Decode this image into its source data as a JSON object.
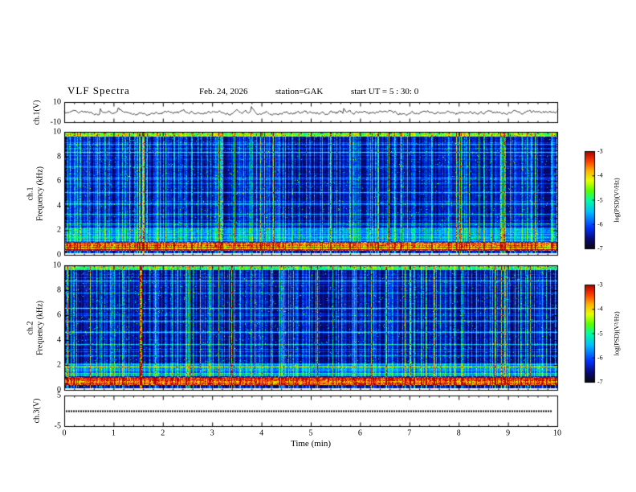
{
  "header": {
    "title": "VLF  Spectra",
    "date": "Feb. 24, 2026",
    "station": "station=GAK",
    "start_ut": "start UT =  5 : 30: 0"
  },
  "axes": {
    "time": {
      "label": "Time (min)",
      "min": 0,
      "max": 10,
      "ticks": [
        0,
        1,
        2,
        3,
        4,
        5,
        6,
        7,
        8,
        9,
        10
      ]
    },
    "ch1_wave": {
      "channel": "ch.1(V)",
      "min": -10,
      "max": 10,
      "ticks": [
        10,
        -10
      ]
    },
    "ch1_spec": {
      "channel": "ch.1",
      "label": "Frequency (kHz)",
      "min": 0,
      "max": 10,
      "ticks": [
        0,
        2,
        4,
        6,
        8,
        10
      ]
    },
    "ch2_spec": {
      "channel": "ch.2",
      "label": "Frequency (kHz)",
      "min": 0,
      "max": 10,
      "ticks": [
        0,
        2,
        4,
        6,
        8,
        10
      ]
    },
    "ch3_wave": {
      "channel": "ch.3(V)",
      "min": -5,
      "max": 5,
      "ticks": [
        5,
        -5
      ]
    }
  },
  "colorbar": {
    "label": "log(PSD)(V²/Hz)",
    "min": -7,
    "max": -3,
    "ticks": [
      -3,
      -4,
      -5,
      -6,
      -7
    ]
  },
  "chart_data": [
    {
      "type": "line",
      "name": "ch1-voltage-trace",
      "panel": "ch.1(V)",
      "x_label": "Time (min)",
      "x_range": [
        0,
        10
      ],
      "y_range": [
        -10,
        10
      ],
      "y_unit": "V",
      "description": "continuous broadband noise waveform, ~±2 V about 0 V with occasional larger spikes",
      "seed": 7
    },
    {
      "type": "heatmap",
      "name": "ch1-spectrogram",
      "panel": "ch.1 Frequency (kHz)",
      "x_label": "Time (min)",
      "x_range": [
        0,
        10
      ],
      "y_label": "Frequency (kHz)",
      "y_range": [
        0,
        10
      ],
      "z_label": "log(PSD)(V²/Hz)",
      "z_range": [
        -7,
        -3
      ],
      "colormap": "jet on black (black→blue→cyan→green→yellow→red)",
      "seed": 11,
      "features": {
        "strong_band_khz": [
          0.45,
          1.15
        ],
        "white_gap_below_khz": 0.2,
        "secondary_band_khz": [
          1.2,
          2.3
        ],
        "top_band_khz": [
          9.65,
          10
        ],
        "strong_event_min": 1.6,
        "strong_event_level": 0.62,
        "description": "dense vertical broadband sferic impulses over dark background; bright red/yellow band near 0.5–1 kHz; persistent horizontal tone lines"
      },
      "h_lines_khz": [
        2.6,
        3.4,
        4.2,
        5.1,
        6.3,
        7.2,
        8.4,
        9.0
      ]
    },
    {
      "type": "heatmap",
      "name": "ch2-spectrogram",
      "panel": "ch.2 Frequency (kHz)",
      "x_label": "Time (min)",
      "x_range": [
        0,
        10
      ],
      "y_label": "Frequency (kHz)",
      "y_range": [
        0,
        10
      ],
      "z_label": "log(PSD)(V²/Hz)",
      "z_range": [
        -7,
        -3
      ],
      "colormap": "jet on black (black→blue→cyan→green→yellow→red)",
      "seed": 23,
      "features": {
        "strong_band_khz": [
          0.45,
          1.1
        ],
        "white_gap_below_khz": 0.2,
        "secondary_band_khz": [
          1.2,
          2.2
        ],
        "top_band_khz": [
          9.65,
          10
        ],
        "strong_event_min": 1.55,
        "strong_event_level": 0.9,
        "description": "similar to ch.1 with a strong red/orange vertical impulse near t=1.5 min"
      },
      "h_lines_khz": [
        1.9,
        2.8,
        3.7,
        4.7,
        5.6,
        6.6,
        7.8,
        8.8
      ]
    },
    {
      "type": "line",
      "name": "ch3-voltage-trace",
      "panel": "ch.3(V)",
      "x_label": "Time (min)",
      "x_range": [
        0,
        10
      ],
      "y_range": [
        -5,
        5
      ],
      "y_unit": "V",
      "value": 0,
      "description": "flat dotted trace at constant 0 V"
    }
  ]
}
